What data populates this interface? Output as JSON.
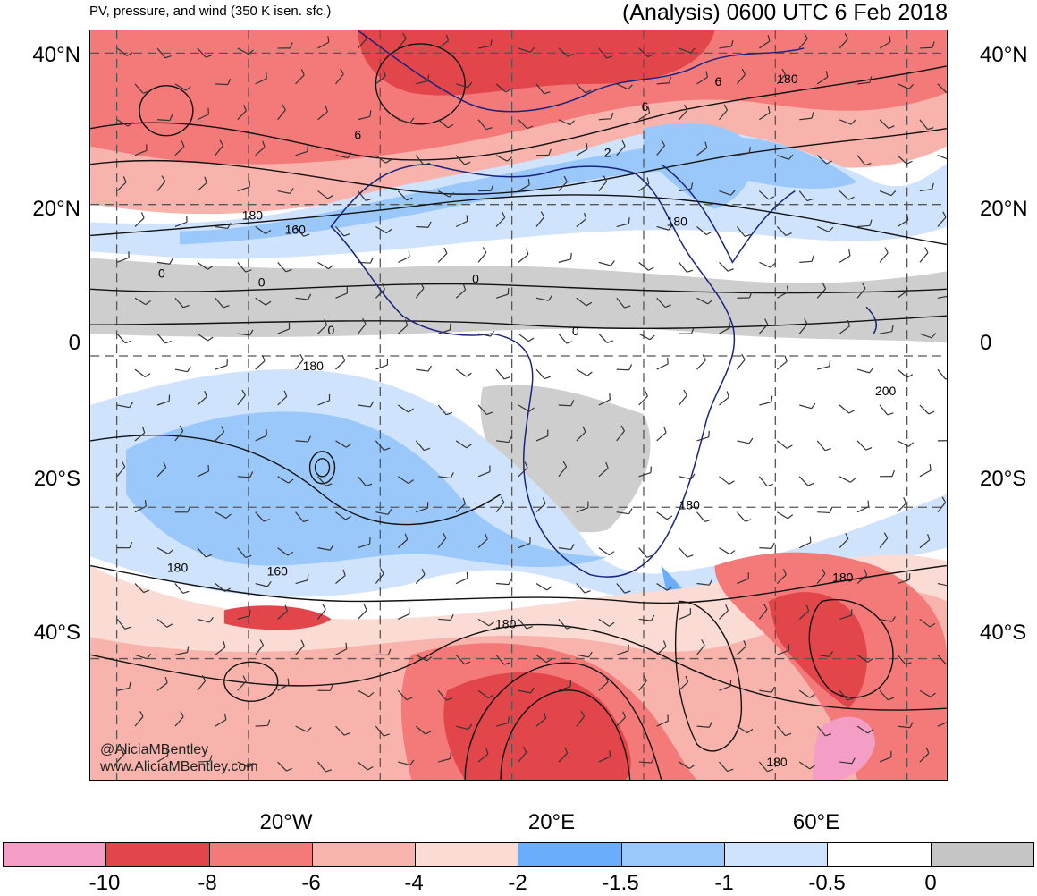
{
  "header": {
    "title_left": "PV, pressure, and wind (350 K isen. sfc.)",
    "title_right": "(Analysis) 0600 UTC 6 Feb 2018"
  },
  "axes": {
    "lat_labels": [
      "40°N",
      "20°N",
      "0",
      "20°S",
      "40°S"
    ],
    "lon_labels": [
      "20°W",
      "20°E",
      "60°E"
    ]
  },
  "map": {
    "extent": {
      "lon_min": -44,
      "lon_max": 86,
      "lat_min": -56,
      "lat_max": 43
    },
    "grid_lons": [
      -40,
      -20,
      0,
      20,
      40,
      60,
      80
    ],
    "grid_lats": [
      40,
      20,
      0,
      -20,
      -40
    ],
    "contour_labels": [
      "6",
      "6",
      "6",
      "2",
      "180",
      "180",
      "160",
      "0",
      "0",
      "0",
      "0",
      "0",
      "180",
      "200",
      "180",
      "160",
      "180",
      "180",
      "180",
      "180",
      "180"
    ]
  },
  "colorbar": {
    "colors": [
      "#f49ec5",
      "#e3464a",
      "#f47a7a",
      "#f8b4ac",
      "#fbdcd5",
      "#6aadfb",
      "#9ac8fb",
      "#cfe3fd",
      "#ffffff",
      "#c5c5c5"
    ],
    "labels": [
      "-10",
      "-8",
      "-6",
      "-4",
      "-2",
      "-1.5",
      "-1",
      "-0.5",
      "0"
    ]
  },
  "credit": {
    "line1": "@AliciaMBentley",
    "line2": "www.AliciaMBentley.com"
  }
}
